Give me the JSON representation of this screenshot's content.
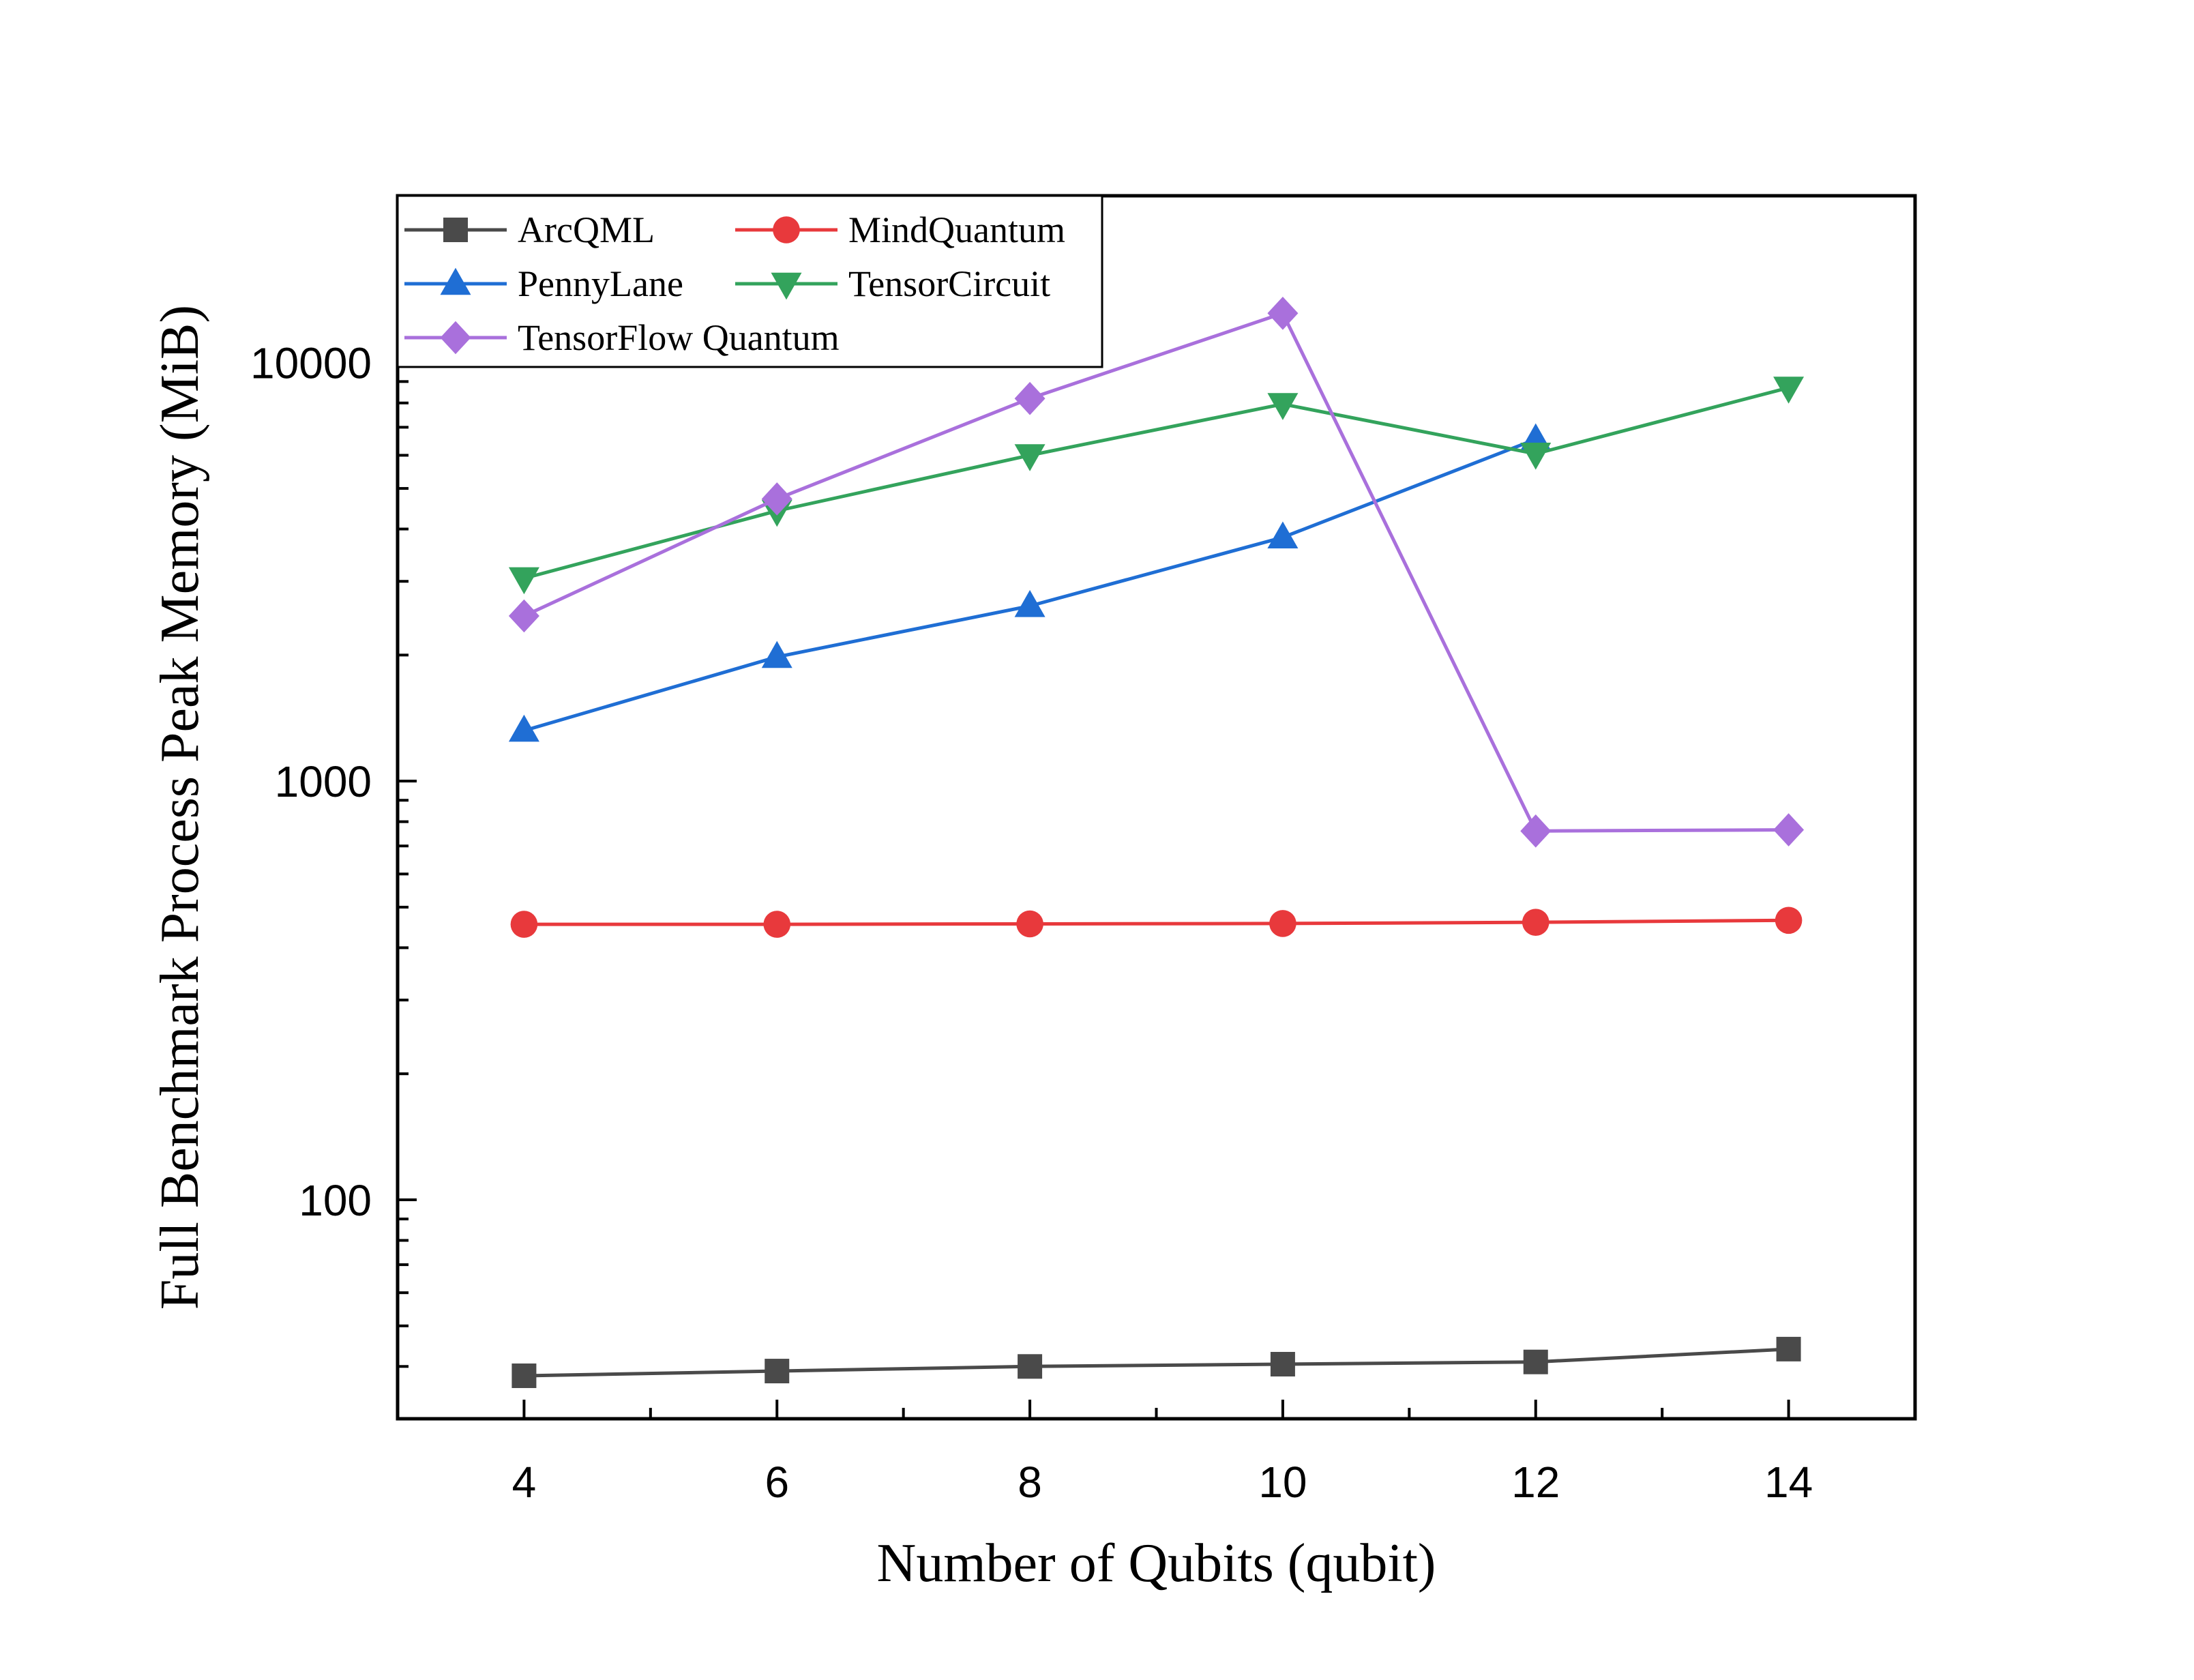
{
  "chart_data": {
    "type": "line",
    "title": "",
    "xlabel": "Number of Qubits (qubit)",
    "ylabel": "Full Benchmark Process Peak Memory (MiB)",
    "x": [
      4,
      6,
      8,
      10,
      12,
      14
    ],
    "xlim": [
      3,
      15
    ],
    "x_ticks": [
      4,
      6,
      8,
      10,
      12,
      14
    ],
    "y_scale": "log",
    "ylim": [
      30,
      25000
    ],
    "y_ticks": [
      100,
      1000,
      10000
    ],
    "grid": false,
    "legend_position": "top-left",
    "series": [
      {
        "name": "ArcQML",
        "color": "#4a4a4a",
        "marker": "square",
        "values": [
          38,
          39,
          40,
          40.5,
          41,
          44
        ]
      },
      {
        "name": "MindQuantum",
        "color": "#e8393c",
        "marker": "circle",
        "values": [
          455,
          455,
          456,
          457,
          460,
          465
        ]
      },
      {
        "name": "PennyLane",
        "color": "#1f6ed4",
        "marker": "triangle-up",
        "values": [
          1320,
          1980,
          2620,
          3820,
          6550,
          null
        ]
      },
      {
        "name": "TensorCircuit",
        "color": "#33a35c",
        "marker": "triangle-down",
        "values": [
          3050,
          4420,
          6000,
          7950,
          6050,
          8700
        ]
      },
      {
        "name": "TensorFlow Quantum",
        "color": "#a970dc",
        "marker": "diamond",
        "values": [
          2480,
          4720,
          8200,
          13100,
          760,
          765
        ]
      }
    ]
  }
}
